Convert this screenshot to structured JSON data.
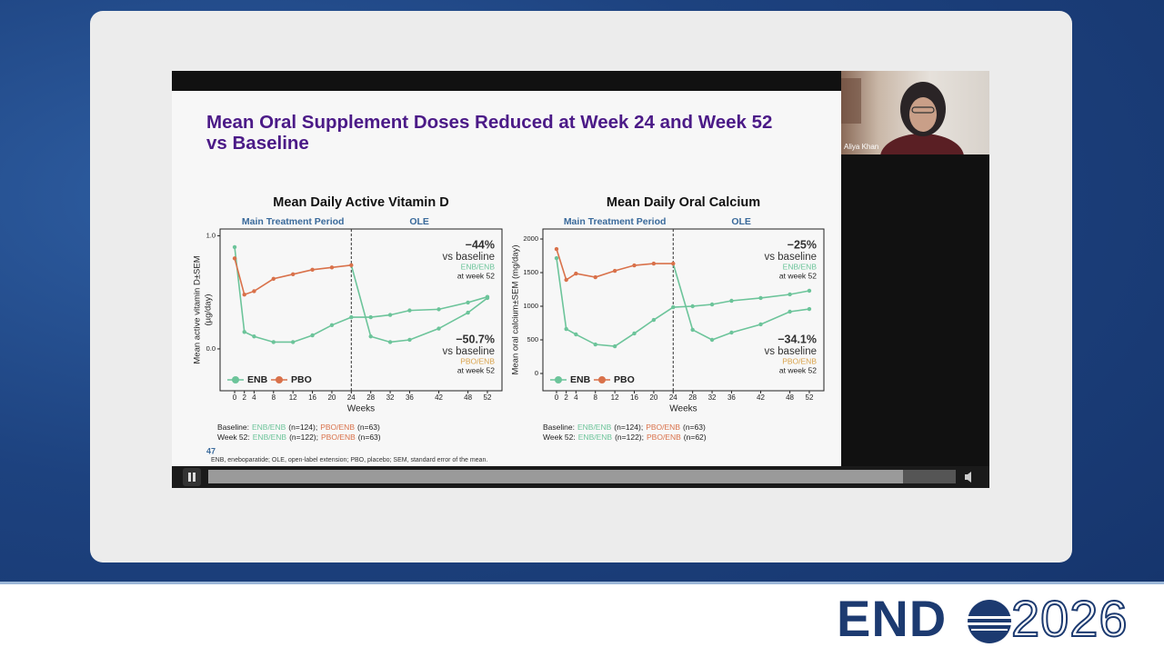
{
  "presenter": {
    "name": "Aliya Khan"
  },
  "slide": {
    "title_lines": [
      "Mean Oral Supplement Doses Reduced at Week 24 and Week 52",
      "vs Baseline"
    ],
    "page_number": "47",
    "footnote": "ENB, eneboparatide; OLE, open-label extension; PBO, placebo; SEM, standard error of the mean."
  },
  "logo": {
    "left": "END",
    "right": "2026"
  },
  "chart_data": [
    {
      "type": "line",
      "title": "Mean Daily Active Vitamin D",
      "x_label": "Weeks",
      "y_label": [
        "Mean active vitamin D±SEM",
        "(µg/day)"
      ],
      "x": [
        0,
        2,
        4,
        8,
        12,
        16,
        20,
        24,
        28,
        32,
        36,
        42,
        48,
        52
      ],
      "series": [
        {
          "name": "ENB",
          "color": "#6cc49a",
          "values": [
            0.9,
            0.15,
            0.11,
            0.06,
            0.06,
            0.12,
            0.21,
            0.28,
            0.28,
            0.3,
            0.34,
            0.35,
            0.41,
            0.46
          ]
        },
        {
          "name": "PBO",
          "color": "#d9714a",
          "ole_color": "#6cc49a",
          "values": [
            0.8,
            0.48,
            0.51,
            0.62,
            0.66,
            0.7,
            0.72,
            0.74,
            0.11,
            0.06,
            0.08,
            0.18,
            0.32,
            0.45
          ]
        }
      ],
      "xlim": [
        -3,
        55
      ],
      "xticks": [
        0,
        2,
        4,
        8,
        12,
        16,
        20,
        24,
        28,
        32,
        36,
        42,
        48,
        52
      ],
      "ylim": [
        -0.37,
        1.06
      ],
      "yticks": [
        {
          "value": 0,
          "label": "0.0"
        },
        {
          "value": 1,
          "label": "1.0"
        }
      ],
      "periods": [
        {
          "label": "Main Treatment Period",
          "from": 0,
          "to": 24
        },
        {
          "label": "OLE",
          "from": 24,
          "to": 52
        }
      ],
      "legend": "lower left",
      "annotations": [
        {
          "change": "−44%",
          "text": "vs baseline",
          "group": "ENB/ENB",
          "group_color": "#6cc49a",
          "when": "at week 52",
          "corner": "upper right"
        },
        {
          "change": "−50.7%",
          "text": "vs baseline",
          "group": "PBO/ENB",
          "group_color": "#d9a24a",
          "when": "at week 52",
          "corner": "lower right"
        }
      ],
      "notes": [
        [
          "Baseline:",
          "ENB/ENB",
          "(n=124);",
          "PBO/ENB",
          "(n=63)"
        ],
        [
          "Week 52:",
          "ENB/ENB",
          "(n=122);",
          "PBO/ENB",
          "(n=63)"
        ]
      ]
    },
    {
      "type": "line",
      "title": "Mean Daily Oral Calcium",
      "x_label": "Weeks",
      "y_label": [
        "Mean oral calcium±SEM (mg/day)"
      ],
      "x": [
        0,
        2,
        4,
        8,
        12,
        16,
        20,
        24,
        28,
        32,
        36,
        42,
        48,
        52
      ],
      "series": [
        {
          "name": "ENB",
          "color": "#6cc49a",
          "values": [
            1716,
            662,
            581,
            432,
            405,
            595,
            797,
            986,
            1000,
            1027,
            1081,
            1122,
            1176,
            1230
          ]
        },
        {
          "name": "PBO",
          "color": "#d9714a",
          "ole_color": "#6cc49a",
          "values": [
            1851,
            1392,
            1486,
            1432,
            1527,
            1608,
            1635,
            1635,
            649,
            500,
            608,
            730,
            919,
            959
          ]
        }
      ],
      "xlim": [
        -2.8,
        55
      ],
      "xticks": [
        0,
        2,
        4,
        8,
        12,
        16,
        20,
        24,
        28,
        32,
        36,
        42,
        48,
        52
      ],
      "ylim": [
        -257,
        2149
      ],
      "yticks": [
        0,
        500,
        1000,
        1500,
        2000
      ],
      "periods": [
        {
          "label": "Main Treatment Period",
          "from": 0,
          "to": 24
        },
        {
          "label": "OLE",
          "from": 24,
          "to": 52
        }
      ],
      "legend": "lower left",
      "annotations": [
        {
          "change": "−25%",
          "text": "vs baseline",
          "group": "ENB/ENB",
          "group_color": "#6cc49a",
          "when": "at week 52",
          "corner": "upper right"
        },
        {
          "change": "−34.1%",
          "text": "vs baseline",
          "group": "PBO/ENB",
          "group_color": "#d9a24a",
          "when": "at week 52",
          "corner": "lower right"
        }
      ],
      "notes": [
        [
          "Baseline:",
          "ENB/ENB",
          "(n=124);",
          "PBO/ENB",
          "(n=63)"
        ],
        [
          "Week 52:",
          "ENB/ENB",
          "(n=122);",
          "PBO/ENB",
          "(n=62)"
        ]
      ]
    }
  ]
}
